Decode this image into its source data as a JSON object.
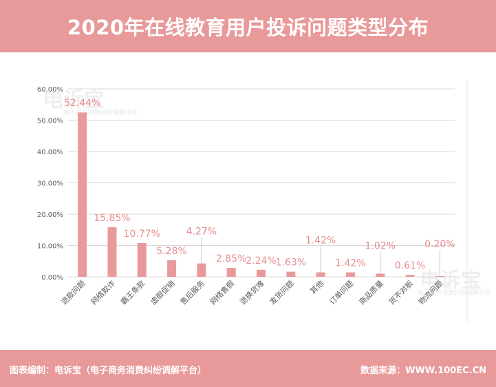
{
  "header": {
    "title": "2020年在线教育用户投诉问题类型分布"
  },
  "footer": {
    "editor": "图表编制：电诉宝（电子商务消费纠纷调解平台）",
    "source": "数据来源：WWW.100EC.CN"
  },
  "watermark": {
    "brand": "电诉宝",
    "sub": "电子商务消费纠纷调解平台"
  },
  "colors": {
    "banner": "#e8999a",
    "bar": "#e89a9b",
    "data_label": "#e88e8f",
    "grid": "#d9d9d9",
    "axis_text": "#595959"
  },
  "chart_data": {
    "type": "bar",
    "title": "2020年在线教育用户投诉问题类型分布",
    "xlabel": "",
    "ylabel": "",
    "categories": [
      "退款问题",
      "网络欺诈",
      "霸王条款",
      "虚假促销",
      "售后服务",
      "网络售假",
      "退换货难",
      "发货问题",
      "其他",
      "订单问题",
      "商品质量",
      "货不对板",
      "物流问题"
    ],
    "values": [
      52.44,
      15.85,
      10.77,
      5.28,
      4.27,
      2.85,
      2.24,
      1.63,
      1.42,
      1.42,
      1.02,
      0.61,
      0.2
    ],
    "value_labels": [
      "52.44%",
      "15.85%",
      "10.77%",
      "5.28%",
      "4.27%",
      "2.85%",
      "2.24%",
      "1.63%",
      "1.42%",
      "1.42%",
      "1.02%",
      "0.61%",
      "0.20%"
    ],
    "yticks": [
      0,
      10,
      20,
      30,
      40,
      50,
      60
    ],
    "ytick_labels": [
      "0.00%",
      "10.00%",
      "20.00%",
      "30.00%",
      "40.00%",
      "50.00%",
      "60.00%"
    ],
    "ylim": [
      0,
      60
    ],
    "grid": true,
    "legend": "none"
  }
}
